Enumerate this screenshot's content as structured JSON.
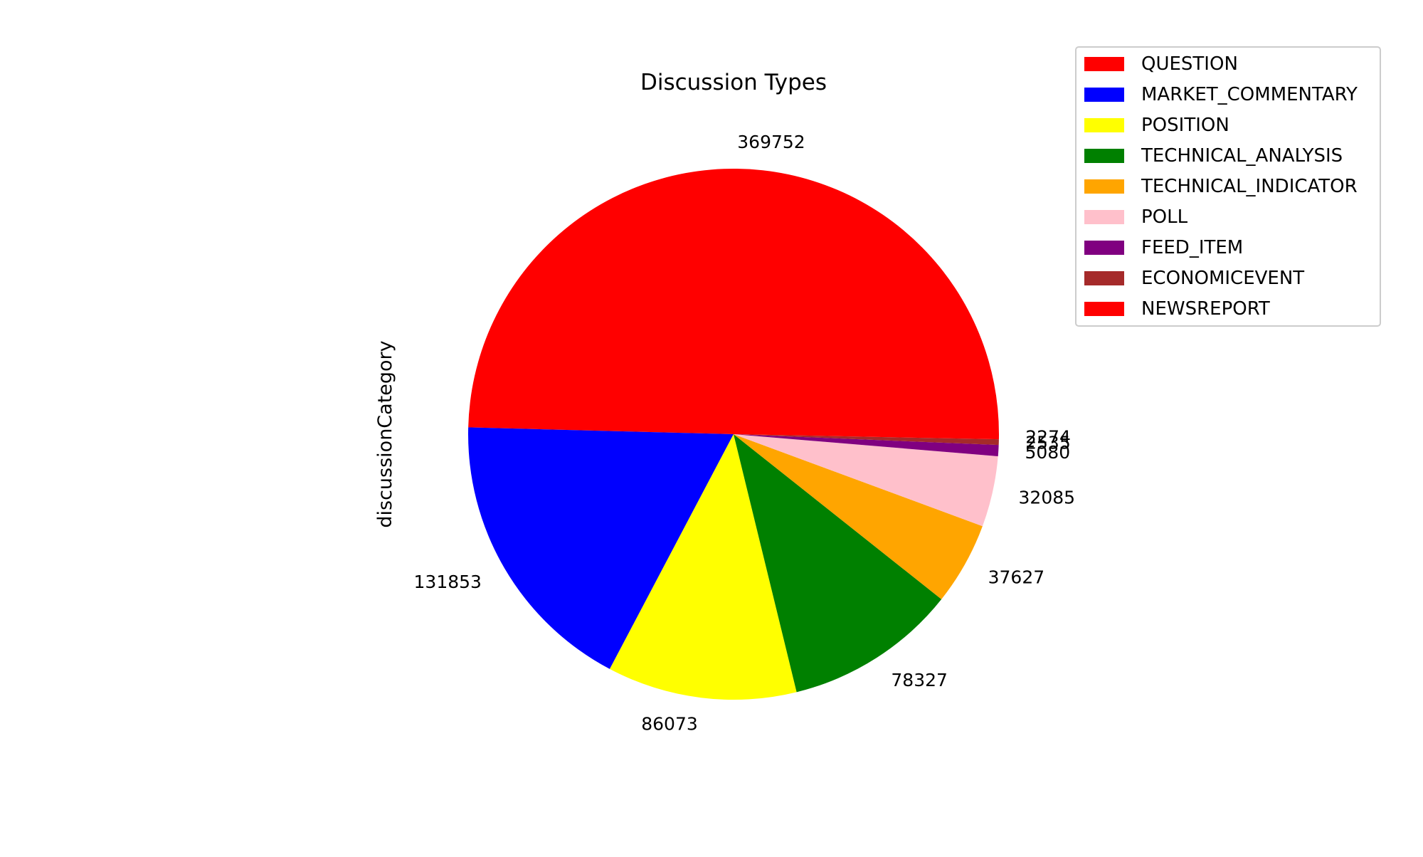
{
  "chart_data": {
    "type": "pie",
    "title": "Discussion Types",
    "ylabel": "discussionCategory",
    "legend_position": "top-right",
    "start_angle_deg": 0,
    "direction": "counterclockwise",
    "slices": [
      {
        "label": "QUESTION",
        "value": 369752,
        "display": "369752",
        "color": "#ff0000"
      },
      {
        "label": "MARKET_COMMENTARY",
        "value": 131853,
        "display": "131853",
        "color": "#0000ff"
      },
      {
        "label": "POSITION",
        "value": 86073,
        "display": "86073",
        "color": "#ffff00"
      },
      {
        "label": "TECHNICAL_ANALYSIS",
        "value": 78327,
        "display": "78327",
        "color": "#008000"
      },
      {
        "label": "TECHNICAL_INDICATOR",
        "value": 37627,
        "display": "37627",
        "color": "#ffa500"
      },
      {
        "label": "POLL",
        "value": 32085,
        "display": "32085",
        "color": "#ffc0cb"
      },
      {
        "label": "FEED_ITEM",
        "value": 5080,
        "display": "5080",
        "color": "#800080"
      },
      {
        "label": "ECONOMICEVENT",
        "value": 2535,
        "display": "2535",
        "color": "#a52a2a"
      },
      {
        "label": "NEWSREPORT",
        "value": 2274,
        "display": "2274",
        "color": "#ff0000"
      }
    ]
  }
}
